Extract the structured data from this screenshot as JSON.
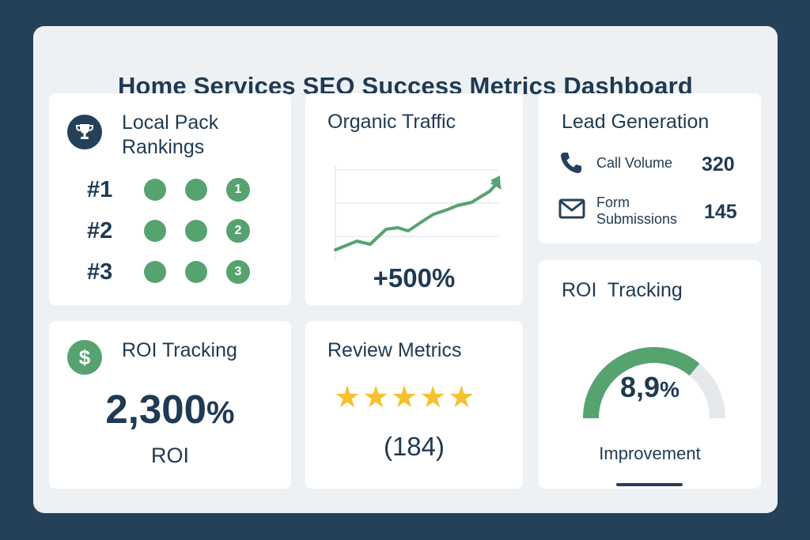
{
  "dashboard": {
    "title": "Home Services SEO Success Metrics Dashboard"
  },
  "local_pack": {
    "title_line1": "Local Pack",
    "title_line2": "Rankings",
    "icon": "trophy-icon",
    "ranks": [
      {
        "label": "#1",
        "badge": "1"
      },
      {
        "label": "#2",
        "badge": "2"
      },
      {
        "label": "#3",
        "badge": "3"
      }
    ]
  },
  "organic_traffic": {
    "title": "Organic Traffic",
    "growth": "+500%"
  },
  "lead_generation": {
    "title": "Lead Generation",
    "call_label": "Call Volume",
    "call_value": "320",
    "form_label_line1": "Form",
    "form_label_line2": "Submissions",
    "form_value": "145",
    "call_icon": "phone-icon",
    "form_icon": "envelope-icon"
  },
  "roi_card": {
    "title": "ROI Tracking",
    "value": "2,300",
    "percent": "%",
    "label": "ROI",
    "icon": "dollar-icon"
  },
  "review_metrics": {
    "title": "Review Metrics",
    "count": "(184)",
    "rating": 5
  },
  "roi_gauge": {
    "title": "ROI  Tracking",
    "value": "8,9",
    "percent": "%",
    "label": "Improvement",
    "level": 0.72
  },
  "colors": {
    "background": "#254159",
    "panel": "#eef1f4",
    "navy": "#1f3a52",
    "green": "#56a36f",
    "star": "#f5c12e"
  }
}
